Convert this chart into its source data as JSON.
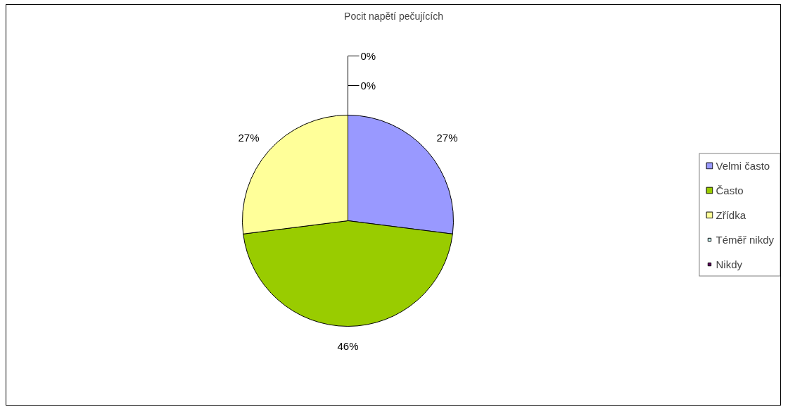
{
  "chart_data": {
    "type": "pie",
    "title": "Pocit napětí pečujících",
    "categories": [
      "Velmi často",
      "Často",
      "Zřídka",
      "Téměř nikdy",
      "Nikdy"
    ],
    "values": [
      27,
      46,
      27,
      0,
      0
    ],
    "colors": [
      "#9999ff",
      "#99cc00",
      "#ffff99",
      "#ccffff",
      "#660066"
    ],
    "value_labels": [
      "27%",
      "46%",
      "27%",
      "0%",
      "0%"
    ],
    "legend": "right"
  }
}
